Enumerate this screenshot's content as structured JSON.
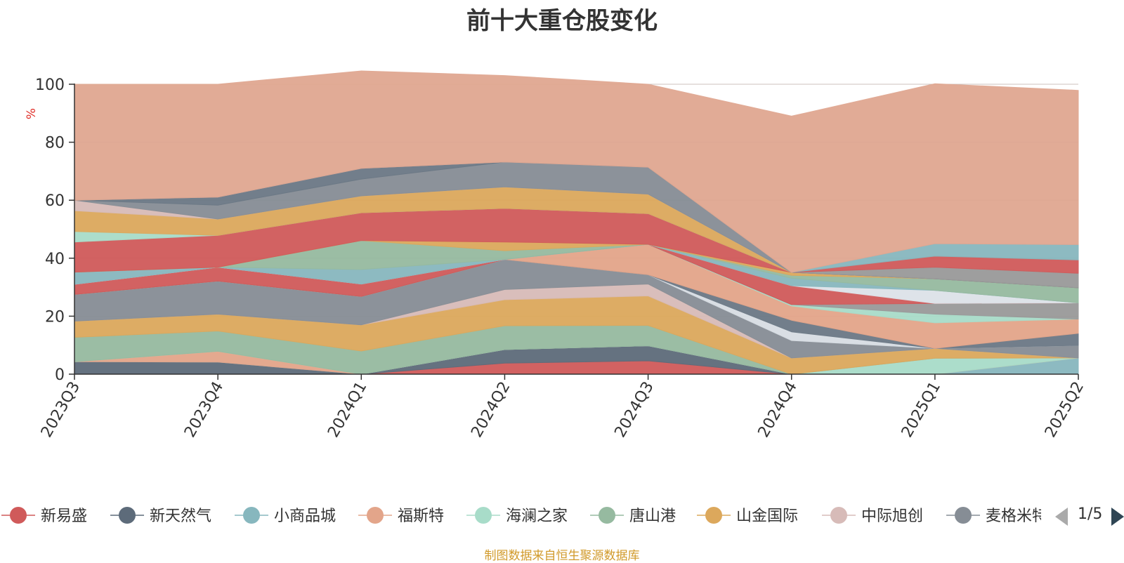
{
  "title": "前十大重仓股变化",
  "source_note": "制图数据来自恒生聚源数据库",
  "legend_pager": "1/5",
  "chart_data": {
    "type": "area",
    "stacked": true,
    "ylabel": "%",
    "ylim": [
      0,
      100
    ],
    "yticks": [
      0,
      20,
      40,
      60,
      80,
      100
    ],
    "grid": true,
    "legend_position": "bottom",
    "categories": [
      "2023Q3",
      "2023Q4",
      "2024Q1",
      "2024Q2",
      "2024Q3",
      "2024Q4",
      "2025Q1",
      "2025Q2"
    ],
    "series": [
      {
        "name": "新易盛",
        "color": "#d05a5a",
        "values": [
          0,
          0,
          0,
          3.8,
          4.6,
          0,
          0,
          0
        ]
      },
      {
        "name": "新天然气",
        "color": "#5d6b7a",
        "values": [
          4.3,
          4.2,
          0,
          4.7,
          5.2,
          0,
          0,
          0
        ]
      },
      {
        "name": "小商品城",
        "color": "#87b7be",
        "values": [
          0,
          0,
          0,
          0,
          0,
          0,
          0,
          5.6
        ]
      },
      {
        "name": "福斯特",
        "color": "#e3a58a",
        "values": [
          0,
          3.7,
          0,
          0,
          0,
          0,
          0,
          0
        ]
      },
      {
        "name": "海澜之家",
        "color": "#a8dcc9",
        "values": [
          0,
          0,
          0,
          0,
          0,
          0,
          5.5,
          0
        ]
      },
      {
        "name": "唐山港",
        "color": "#96baa0",
        "values": [
          8.4,
          7,
          8,
          8.2,
          7,
          0,
          0,
          0
        ]
      },
      {
        "name": "山金国际",
        "color": "#dca85c",
        "values": [
          5.6,
          5.8,
          9,
          9,
          10.2,
          5.6,
          3.4,
          0
        ]
      },
      {
        "name": "中际旭创",
        "color": "#d7bbb8",
        "values": [
          0,
          0,
          0,
          3.5,
          4.1,
          0,
          0,
          0
        ]
      },
      {
        "name": "麦格米特",
        "color": "#868d95",
        "values": [
          9.2,
          11.4,
          9.8,
          10.4,
          3.2,
          6,
          0,
          4.3
        ]
      },
      {
        "name": "",
        "color": "#d7dde3",
        "values": [
          0,
          0,
          0,
          0,
          0,
          3,
          0,
          0
        ]
      },
      {
        "name": "",
        "color": "#6b7885",
        "values": [
          0,
          0,
          0,
          0,
          0,
          4,
          0,
          4.2
        ]
      },
      {
        "name": "",
        "color": "#e3a58a",
        "values": [
          0,
          0,
          0,
          0,
          10.5,
          4.9,
          8.8,
          4.9
        ]
      },
      {
        "name": "",
        "color": "#a8dcc9",
        "values": [
          0,
          0,
          0,
          0,
          0,
          0.5,
          3,
          0
        ]
      },
      {
        "name": "",
        "color": "#999999",
        "values": [
          0,
          0,
          0,
          0,
          0,
          0,
          3.7,
          5.6
        ]
      },
      {
        "name": "",
        "color": "#d05a5a",
        "values": [
          3.5,
          4.8,
          4.3,
          0,
          0,
          6.5,
          0,
          0
        ]
      },
      {
        "name": "",
        "color": "#dde2e8",
        "values": [
          0,
          0,
          0,
          0,
          0,
          0,
          4.5,
          0
        ]
      },
      {
        "name": "",
        "color": "#87b7be",
        "values": [
          4.2,
          0,
          5,
          0,
          0,
          2.6,
          0,
          0
        ]
      },
      {
        "name": "",
        "color": "#96baa0",
        "values": [
          0,
          0,
          10,
          3,
          0,
          1,
          4,
          5.2
        ]
      },
      {
        "name": "",
        "color": "#dca85c",
        "values": [
          0,
          0,
          0,
          3,
          0,
          1,
          0,
          0
        ]
      },
      {
        "name": "",
        "color": "#d05a5a",
        "values": [
          10.4,
          11,
          9.6,
          11.6,
          10.6,
          0,
          0,
          0
        ]
      },
      {
        "name": "",
        "color": "#a8dcc9",
        "values": [
          3.6,
          0,
          0,
          0,
          0,
          0,
          0,
          0
        ]
      },
      {
        "name": "",
        "color": "#dca85c",
        "values": [
          7.2,
          5.6,
          5.8,
          7.4,
          6.7,
          0,
          0,
          0
        ]
      },
      {
        "name": "",
        "color": "#d7bbb8",
        "values": [
          3.6,
          0,
          0,
          0,
          0,
          0,
          0,
          0
        ]
      },
      {
        "name": "",
        "color": "#868d95",
        "values": [
          0,
          4.8,
          5.8,
          8.6,
          9.3,
          0,
          0,
          0
        ]
      },
      {
        "name": "",
        "color": "#6b7885",
        "values": [
          0,
          2.8,
          3.7,
          0,
          0,
          0,
          0,
          0
        ]
      },
      {
        "name": "",
        "color": "#999999",
        "values": [
          0,
          0,
          0,
          0,
          0,
          0,
          4,
          5
        ]
      },
      {
        "name": "",
        "color": "#d05a5a",
        "values": [
          0,
          0,
          0,
          0,
          0,
          0,
          3.8,
          4.6
        ]
      },
      {
        "name": "",
        "color": "#87b7be",
        "values": [
          0,
          0,
          0,
          0,
          0,
          0,
          4.3,
          5.3
        ]
      },
      {
        "name": "",
        "color": "#e0a791",
        "values": [
          40,
          38.9,
          33.6,
          29.8,
          28.6,
          53.9,
          55.2,
          53.2
        ]
      }
    ]
  }
}
